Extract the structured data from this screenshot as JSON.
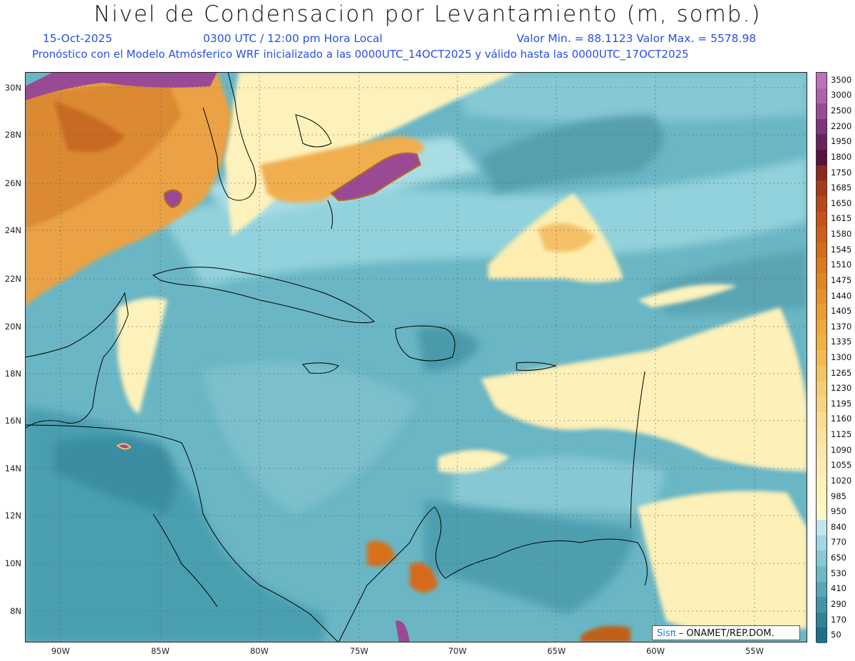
{
  "header": {
    "title": "Nivel de Condensacion por Levantamiento (m, somb.)",
    "date": "15-Oct-2025",
    "time": "0300 UTC / 12:00 pm Hora Local",
    "minmax": "Valor Min. = 88.1123  Valor Max. = 5578.98",
    "model_line": "Pronóstico con el Modelo Atmósferico WRF inicializado a las 0000UTC_14OCT2025 y válido hasta las  0000UTC_17OCT2025"
  },
  "axes": {
    "lat_labels": [
      "30N",
      "28N",
      "26N",
      "24N",
      "22N",
      "20N",
      "18N",
      "16N",
      "14N",
      "12N",
      "10N",
      "8N"
    ],
    "lon_labels": [
      "90W",
      "85W",
      "80W",
      "75W",
      "70W",
      "65W",
      "60W",
      "55W"
    ]
  },
  "colorbar": {
    "labels": [
      "3500",
      "3000",
      "2500",
      "2200",
      "1950",
      "1800",
      "1750",
      "1685",
      "1650",
      "1615",
      "1580",
      "1545",
      "1510",
      "1475",
      "1440",
      "1405",
      "1370",
      "1335",
      "1300",
      "1265",
      "1230",
      "1195",
      "1160",
      "1125",
      "1090",
      "1055",
      "1020",
      "985",
      "950",
      "840",
      "770",
      "650",
      "530",
      "410",
      "290",
      "170",
      "50"
    ],
    "colors": [
      "#c070b8",
      "#b060a8",
      "#9a4a95",
      "#803480",
      "#6a2060",
      "#5a1040",
      "#8a2a20",
      "#a83a1a",
      "#b84818",
      "#c45418",
      "#cc6018",
      "#d46c1c",
      "#dc7820",
      "#e28424",
      "#e89028",
      "#ec9c30",
      "#f0a838",
      "#f2b040",
      "#f4ba50",
      "#f6c460",
      "#f8cc70",
      "#f8d47e",
      "#fadc8c",
      "#fae29a",
      "#fce8a6",
      "#fcecb0",
      "#fdf0b8",
      "#fdf4c0",
      "#fef8c8",
      "#bfe6ec",
      "#9ed8e2",
      "#86c8d4",
      "#6eb8c6",
      "#56a8b8",
      "#3f96a8",
      "#2c8498",
      "#1e7088"
    ]
  },
  "credit": {
    "brand": "Sisπ",
    "text": " – ONAMET/REP.DOM."
  }
}
